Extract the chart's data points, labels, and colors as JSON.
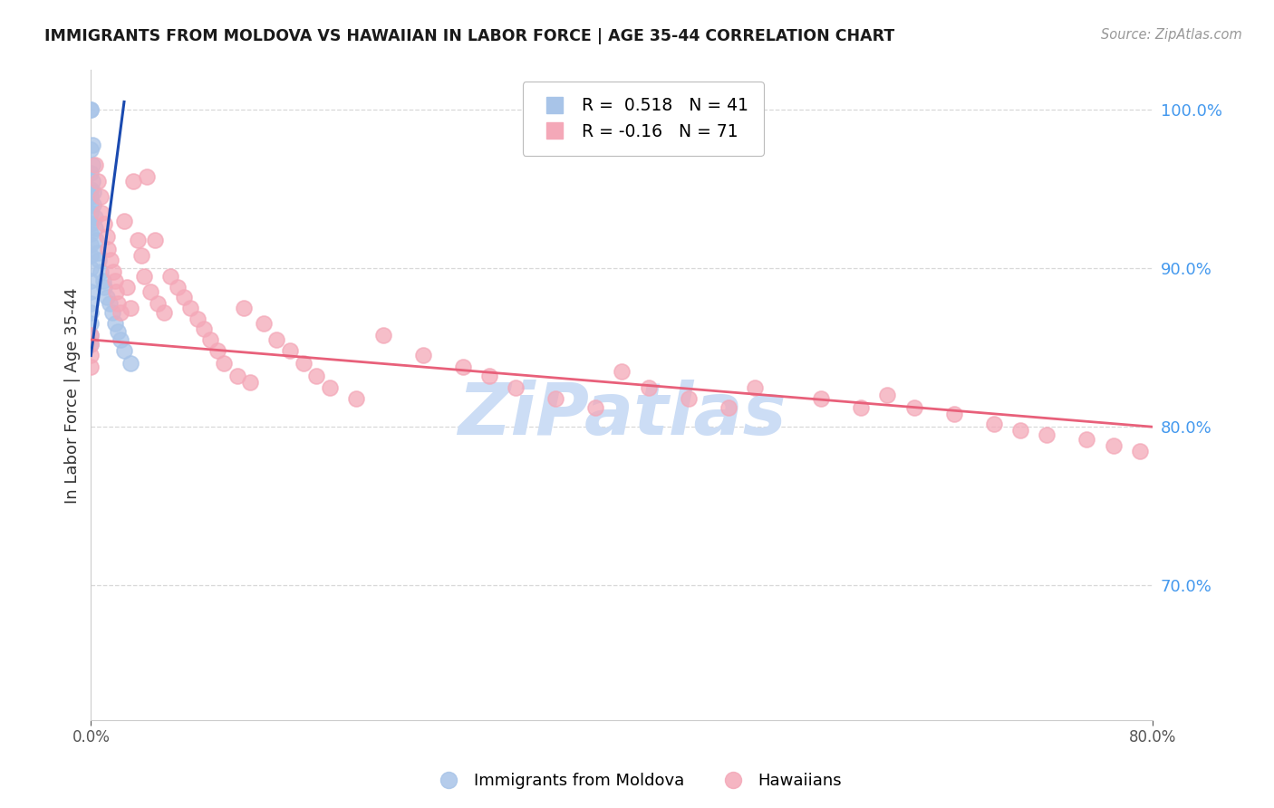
{
  "title": "IMMIGRANTS FROM MOLDOVA VS HAWAIIAN IN LABOR FORCE | AGE 35-44 CORRELATION CHART",
  "source": "Source: ZipAtlas.com",
  "ylabel": "In Labor Force | Age 35-44",
  "blue_label": "Immigrants from Moldova",
  "pink_label": "Hawaiians",
  "blue_R": 0.518,
  "blue_N": 41,
  "pink_R": -0.16,
  "pink_N": 71,
  "blue_color": "#a8c4e8",
  "pink_color": "#f4a8b8",
  "trend_blue_color": "#1a4ab0",
  "trend_pink_color": "#e8607a",
  "right_axis_color": "#4499ee",
  "xmin": 0.0,
  "xmax": 0.8,
  "ymin": 0.615,
  "ymax": 1.025,
  "blue_x": [
    0.0,
    0.0,
    0.0,
    0.0,
    0.0,
    0.0,
    0.0,
    0.0,
    0.0,
    0.0,
    0.0,
    0.0,
    0.0,
    0.0,
    0.0,
    0.0,
    0.0,
    0.0,
    0.0,
    0.0,
    0.001,
    0.001,
    0.001,
    0.002,
    0.002,
    0.003,
    0.003,
    0.004,
    0.005,
    0.006,
    0.007,
    0.009,
    0.01,
    0.012,
    0.014,
    0.016,
    0.018,
    0.02,
    0.022,
    0.025,
    0.03
  ],
  "blue_y": [
    1.0,
    1.0,
    0.975,
    0.96,
    0.95,
    0.945,
    0.94,
    0.935,
    0.928,
    0.922,
    0.915,
    0.908,
    0.9,
    0.892,
    0.885,
    0.878,
    0.872,
    0.865,
    0.858,
    0.852,
    0.978,
    0.965,
    0.955,
    0.948,
    0.94,
    0.932,
    0.925,
    0.918,
    0.91,
    0.905,
    0.898,
    0.892,
    0.888,
    0.882,
    0.878,
    0.872,
    0.865,
    0.86,
    0.855,
    0.848,
    0.84
  ],
  "pink_x": [
    0.0,
    0.0,
    0.0,
    0.0,
    0.003,
    0.005,
    0.007,
    0.008,
    0.01,
    0.012,
    0.013,
    0.015,
    0.017,
    0.018,
    0.019,
    0.02,
    0.022,
    0.025,
    0.027,
    0.03,
    0.032,
    0.035,
    0.038,
    0.04,
    0.042,
    0.045,
    0.048,
    0.05,
    0.055,
    0.06,
    0.065,
    0.07,
    0.075,
    0.08,
    0.085,
    0.09,
    0.095,
    0.1,
    0.11,
    0.115,
    0.12,
    0.13,
    0.14,
    0.15,
    0.16,
    0.17,
    0.18,
    0.2,
    0.22,
    0.25,
    0.28,
    0.3,
    0.32,
    0.35,
    0.38,
    0.4,
    0.42,
    0.45,
    0.48,
    0.5,
    0.55,
    0.58,
    0.6,
    0.62,
    0.65,
    0.68,
    0.7,
    0.72,
    0.75,
    0.77,
    0.79
  ],
  "pink_y": [
    0.858,
    0.852,
    0.845,
    0.838,
    0.965,
    0.955,
    0.945,
    0.935,
    0.928,
    0.92,
    0.912,
    0.905,
    0.898,
    0.892,
    0.885,
    0.878,
    0.872,
    0.93,
    0.888,
    0.875,
    0.955,
    0.918,
    0.908,
    0.895,
    0.958,
    0.885,
    0.918,
    0.878,
    0.872,
    0.895,
    0.888,
    0.882,
    0.875,
    0.868,
    0.862,
    0.855,
    0.848,
    0.84,
    0.832,
    0.875,
    0.828,
    0.865,
    0.855,
    0.848,
    0.84,
    0.832,
    0.825,
    0.818,
    0.858,
    0.845,
    0.838,
    0.832,
    0.825,
    0.818,
    0.812,
    0.835,
    0.825,
    0.818,
    0.812,
    0.825,
    0.818,
    0.812,
    0.82,
    0.812,
    0.808,
    0.802,
    0.798,
    0.795,
    0.792,
    0.788,
    0.785
  ],
  "watermark": "ZiPatlas",
  "watermark_color": "#ccddf5",
  "background_color": "#ffffff",
  "grid_color": "#d8d8d8",
  "yticks_right": [
    0.7,
    0.8,
    0.9,
    1.0
  ],
  "xticks": [
    0.0,
    0.8
  ],
  "blue_trend_xmin": 0.0,
  "blue_trend_xmax": 0.03,
  "pink_trend_xmin": 0.0,
  "pink_trend_xmax": 0.8
}
